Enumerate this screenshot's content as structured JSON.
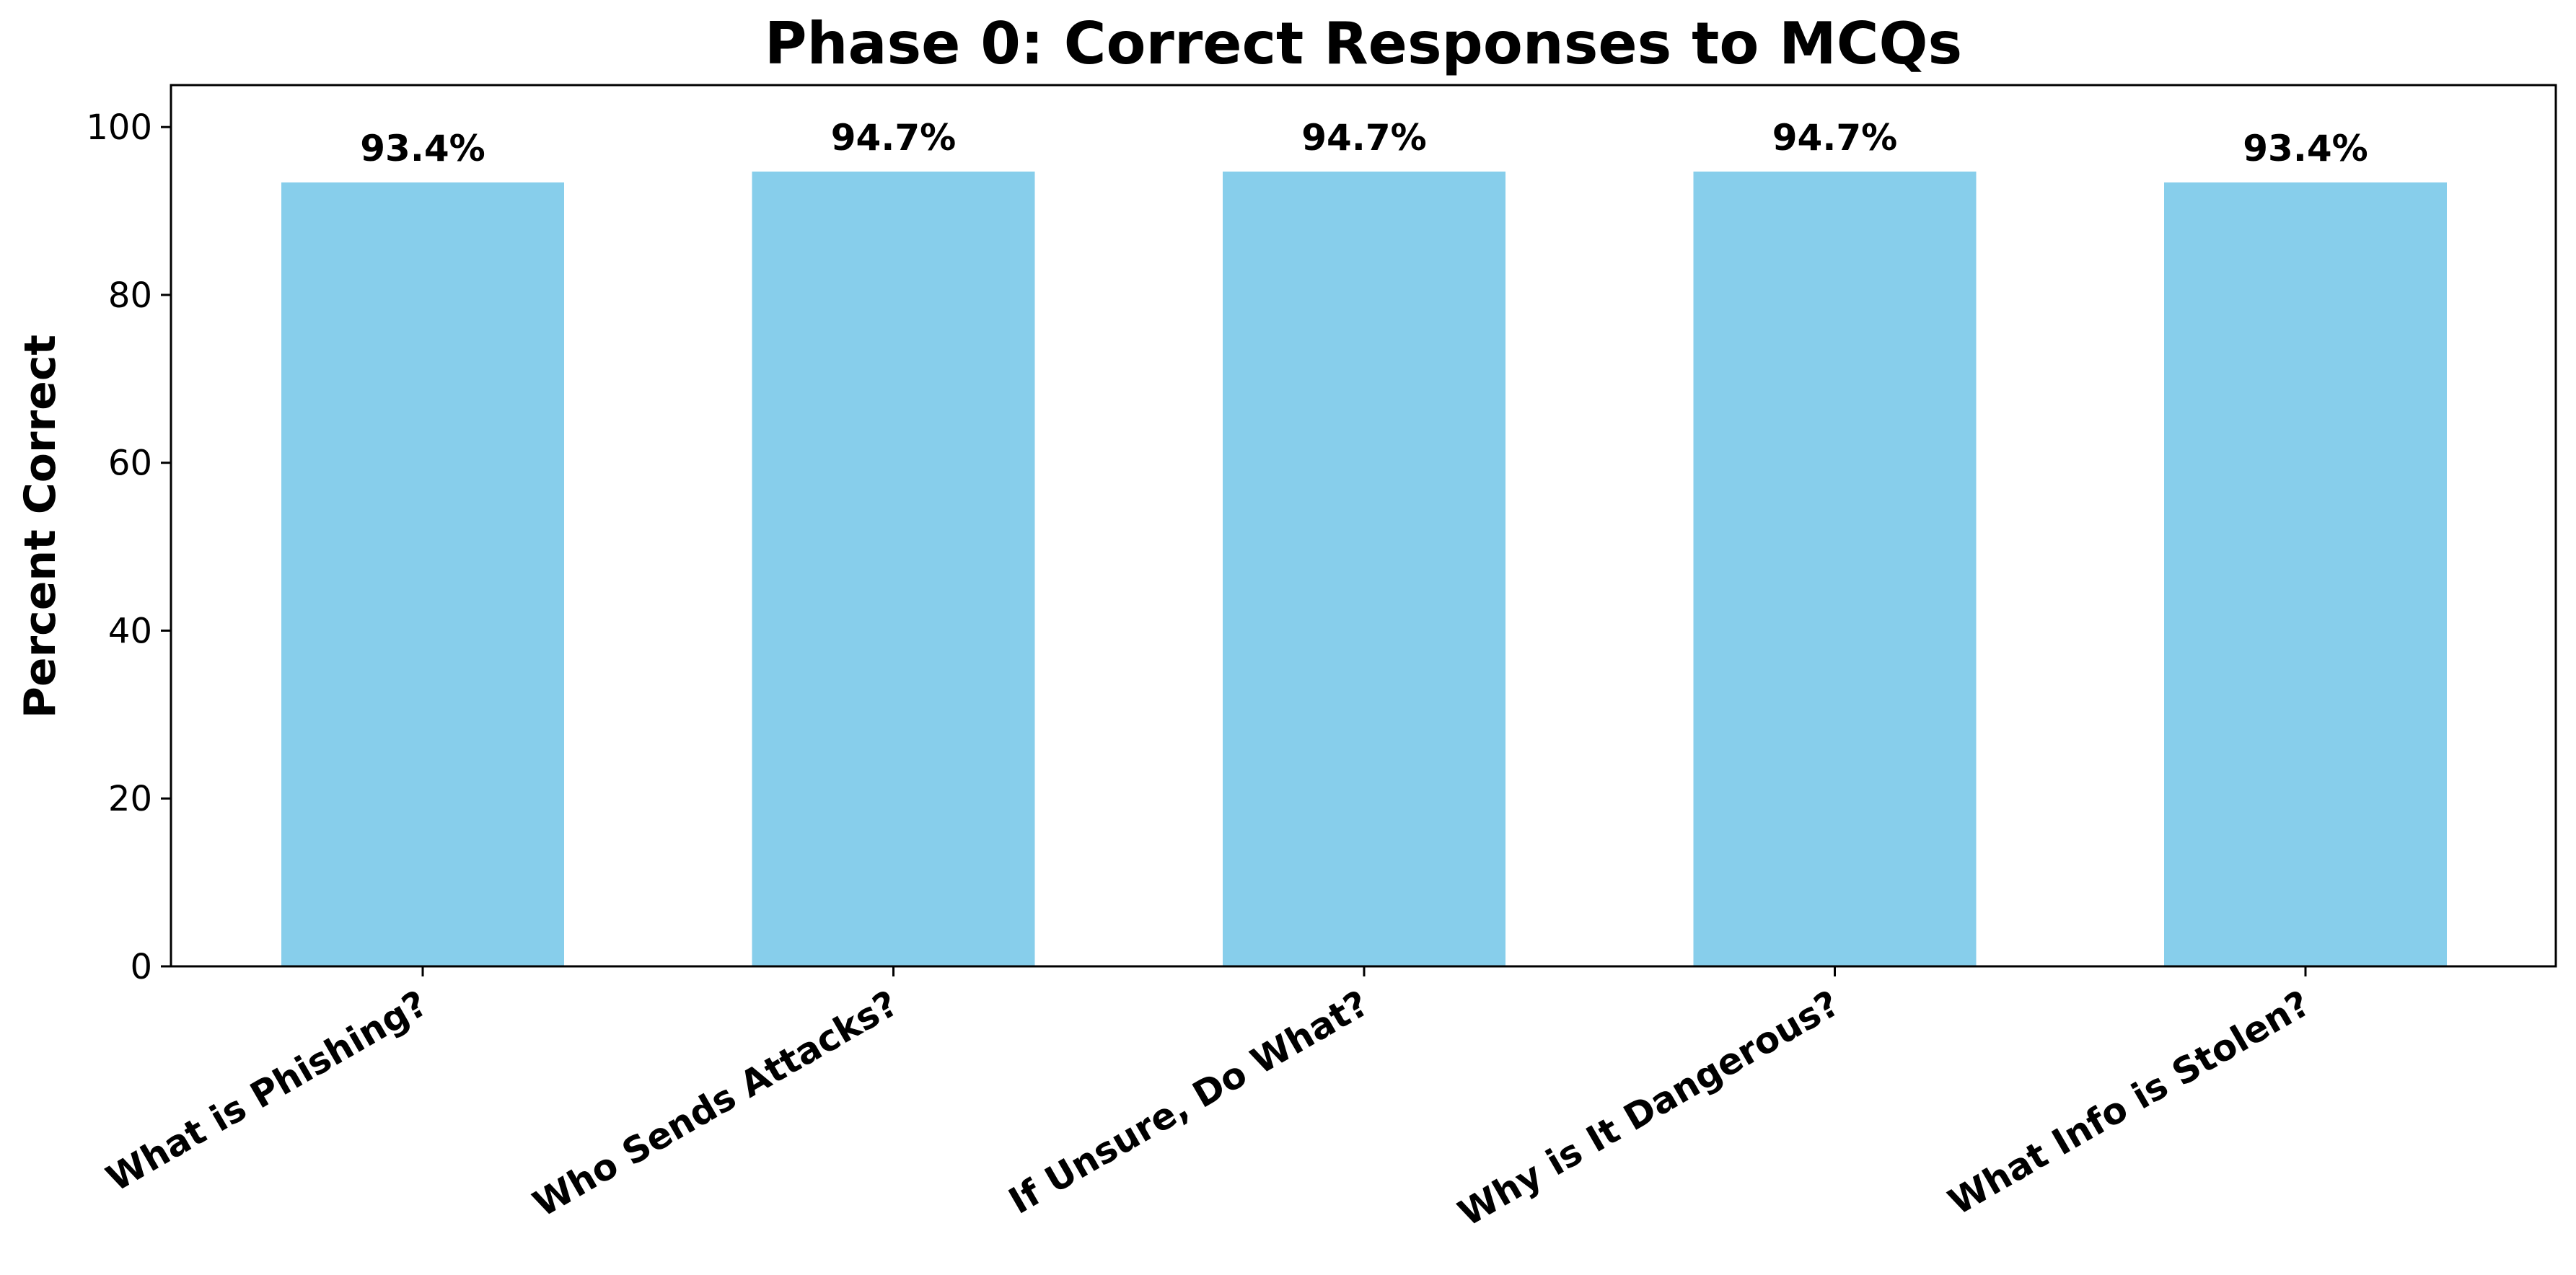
{
  "chart_data": {
    "type": "bar",
    "title": "Phase 0: Correct Responses to MCQs",
    "xlabel": "",
    "ylabel": "Percent Correct",
    "categories": [
      "What is Phishing?",
      "Who Sends Attacks?",
      "If Unsure, Do What?",
      "Why is It Dangerous?",
      "What Info is Stolen?"
    ],
    "values": [
      93.4,
      94.7,
      94.7,
      94.7,
      93.4
    ],
    "data_labels": [
      "93.4%",
      "94.7%",
      "94.7%",
      "94.7%",
      "93.4%"
    ],
    "ylim": [
      0,
      105
    ],
    "yticks": [
      0,
      20,
      40,
      60,
      80,
      100
    ],
    "ytick_labels": [
      "0",
      "20",
      "40",
      "60",
      "80",
      "100"
    ],
    "bar_color": "#87CEEB",
    "grid": false,
    "legend": "none"
  }
}
